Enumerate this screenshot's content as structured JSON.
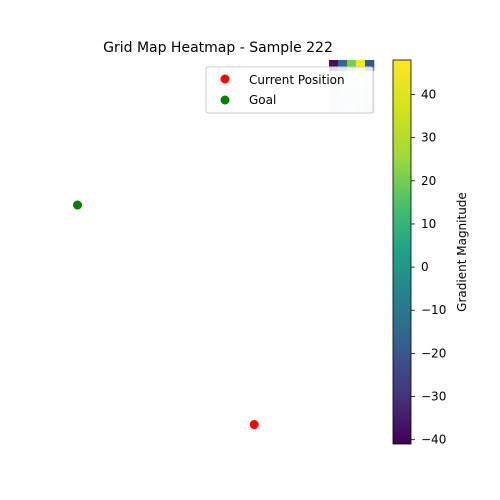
{
  "chart_data": {
    "type": "heatmap",
    "title": "Grid Map Heatmap - Sample 222",
    "grid": {
      "colormap": "viridis",
      "vmin": -41,
      "vmax": 48,
      "rows": [
        [
          -38,
          -15,
          20,
          46,
          -20
        ],
        [
          -30,
          5,
          38,
          47,
          14
        ],
        [
          -35,
          8,
          15,
          10,
          5
        ],
        [
          -28,
          0,
          -20,
          10,
          4
        ],
        [
          -15,
          5,
          12,
          -20,
          -25
        ]
      ],
      "overlay_alpha": 0.15,
      "overlay_from_row": 1
    },
    "points": [
      {
        "name": "Current Position",
        "color": "#ff0000",
        "x": 0.62,
        "y": 0.93
      },
      {
        "name": "Goal",
        "color": "#008000",
        "x": 0.05,
        "y": 0.37
      }
    ],
    "legend": {
      "placement": "upper-right",
      "entries": [
        "Current Position",
        "Goal"
      ]
    },
    "colorbar": {
      "label": "Gradient Magnitude",
      "ticks": [
        40,
        30,
        20,
        10,
        0,
        -10,
        -20,
        -30,
        -40
      ],
      "tick_labels": [
        "40",
        "30",
        "20",
        "10",
        "0",
        "−10",
        "−20",
        "−30",
        "−40"
      ],
      "min": -41,
      "max": 48
    },
    "axes_visible": false
  }
}
